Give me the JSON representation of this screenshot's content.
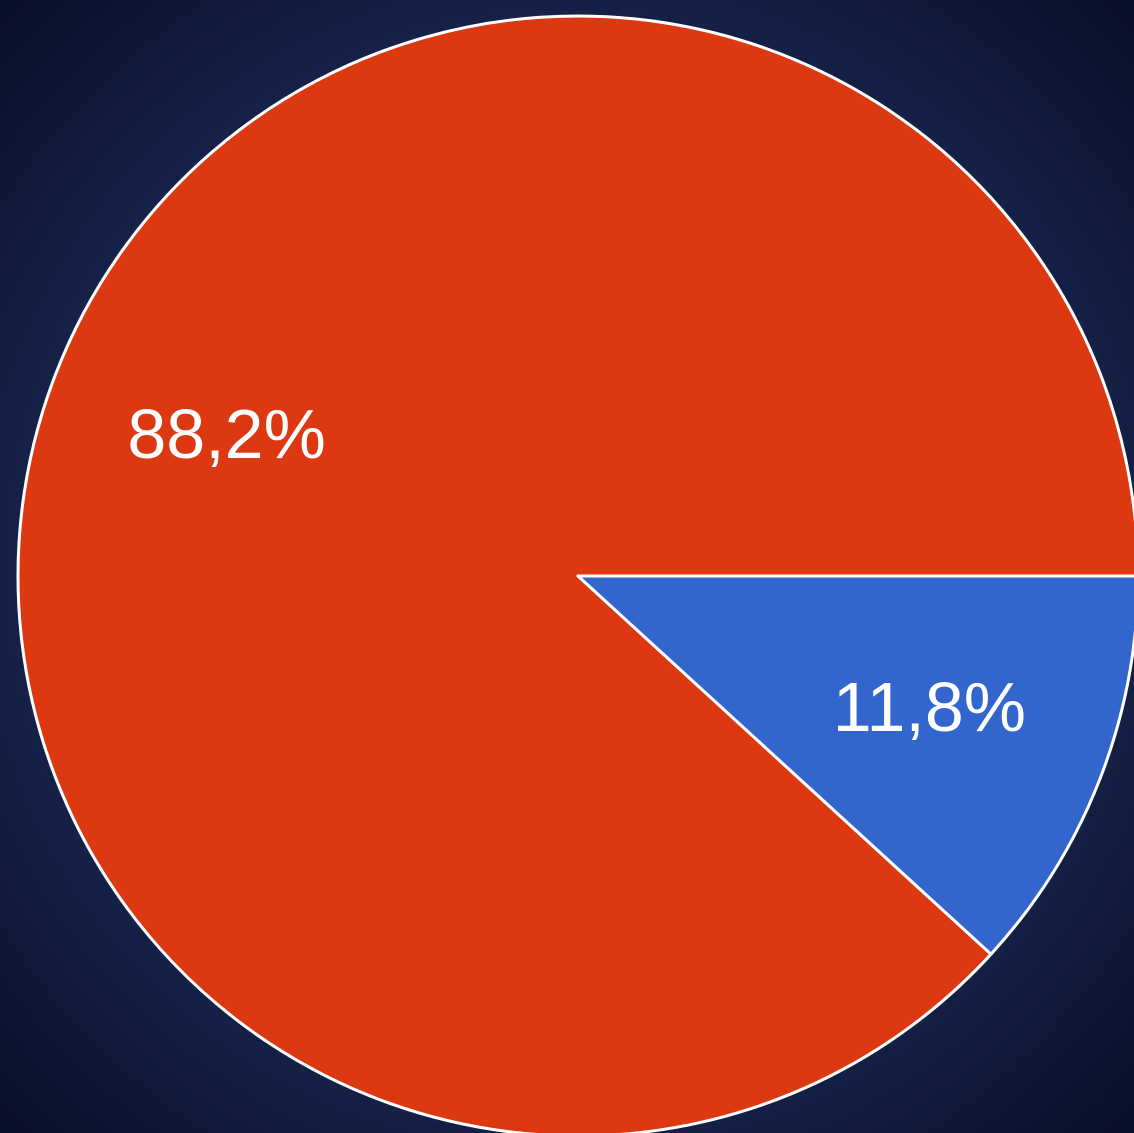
{
  "chart_data": {
    "type": "pie",
    "values": [
      88.2,
      11.8
    ],
    "value_labels": [
      "88,2%",
      "11,8%"
    ],
    "colors": [
      "#dc3912",
      "#3366cc"
    ]
  }
}
